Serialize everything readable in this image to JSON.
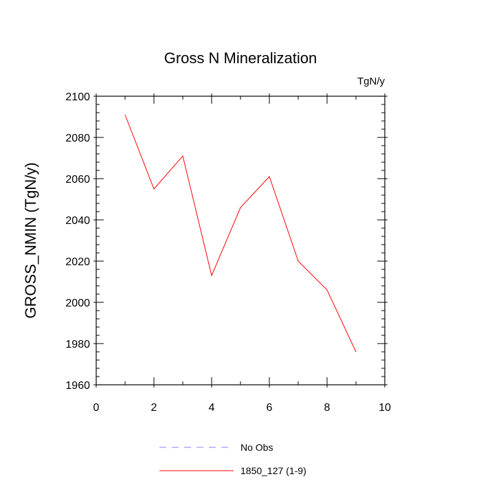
{
  "chart_data": {
    "type": "line",
    "title": "Gross N Mineralization",
    "units_label": "TgN/y",
    "xlabel": "",
    "ylabel": "GROSS_NMIN  (TgN/y)",
    "xlim": [
      0,
      10
    ],
    "ylim": [
      1960,
      2100
    ],
    "x_ticks": [
      0,
      2,
      4,
      6,
      8,
      10
    ],
    "y_ticks": [
      1960,
      1980,
      2000,
      2020,
      2040,
      2060,
      2080,
      2100
    ],
    "grid": false,
    "legend_position": "bottom-center",
    "series": [
      {
        "name": "No Obs",
        "color": "#8080ff",
        "style": "dashed",
        "x": [],
        "values": []
      },
      {
        "name": "1850_127 (1-9)",
        "color": "#ff0000",
        "style": "solid",
        "x": [
          1,
          2,
          3,
          4,
          5,
          6,
          7,
          8,
          9
        ],
        "values": [
          2091,
          2055,
          2071,
          2013,
          2046,
          2061,
          2020,
          2006,
          1976
        ]
      }
    ]
  }
}
